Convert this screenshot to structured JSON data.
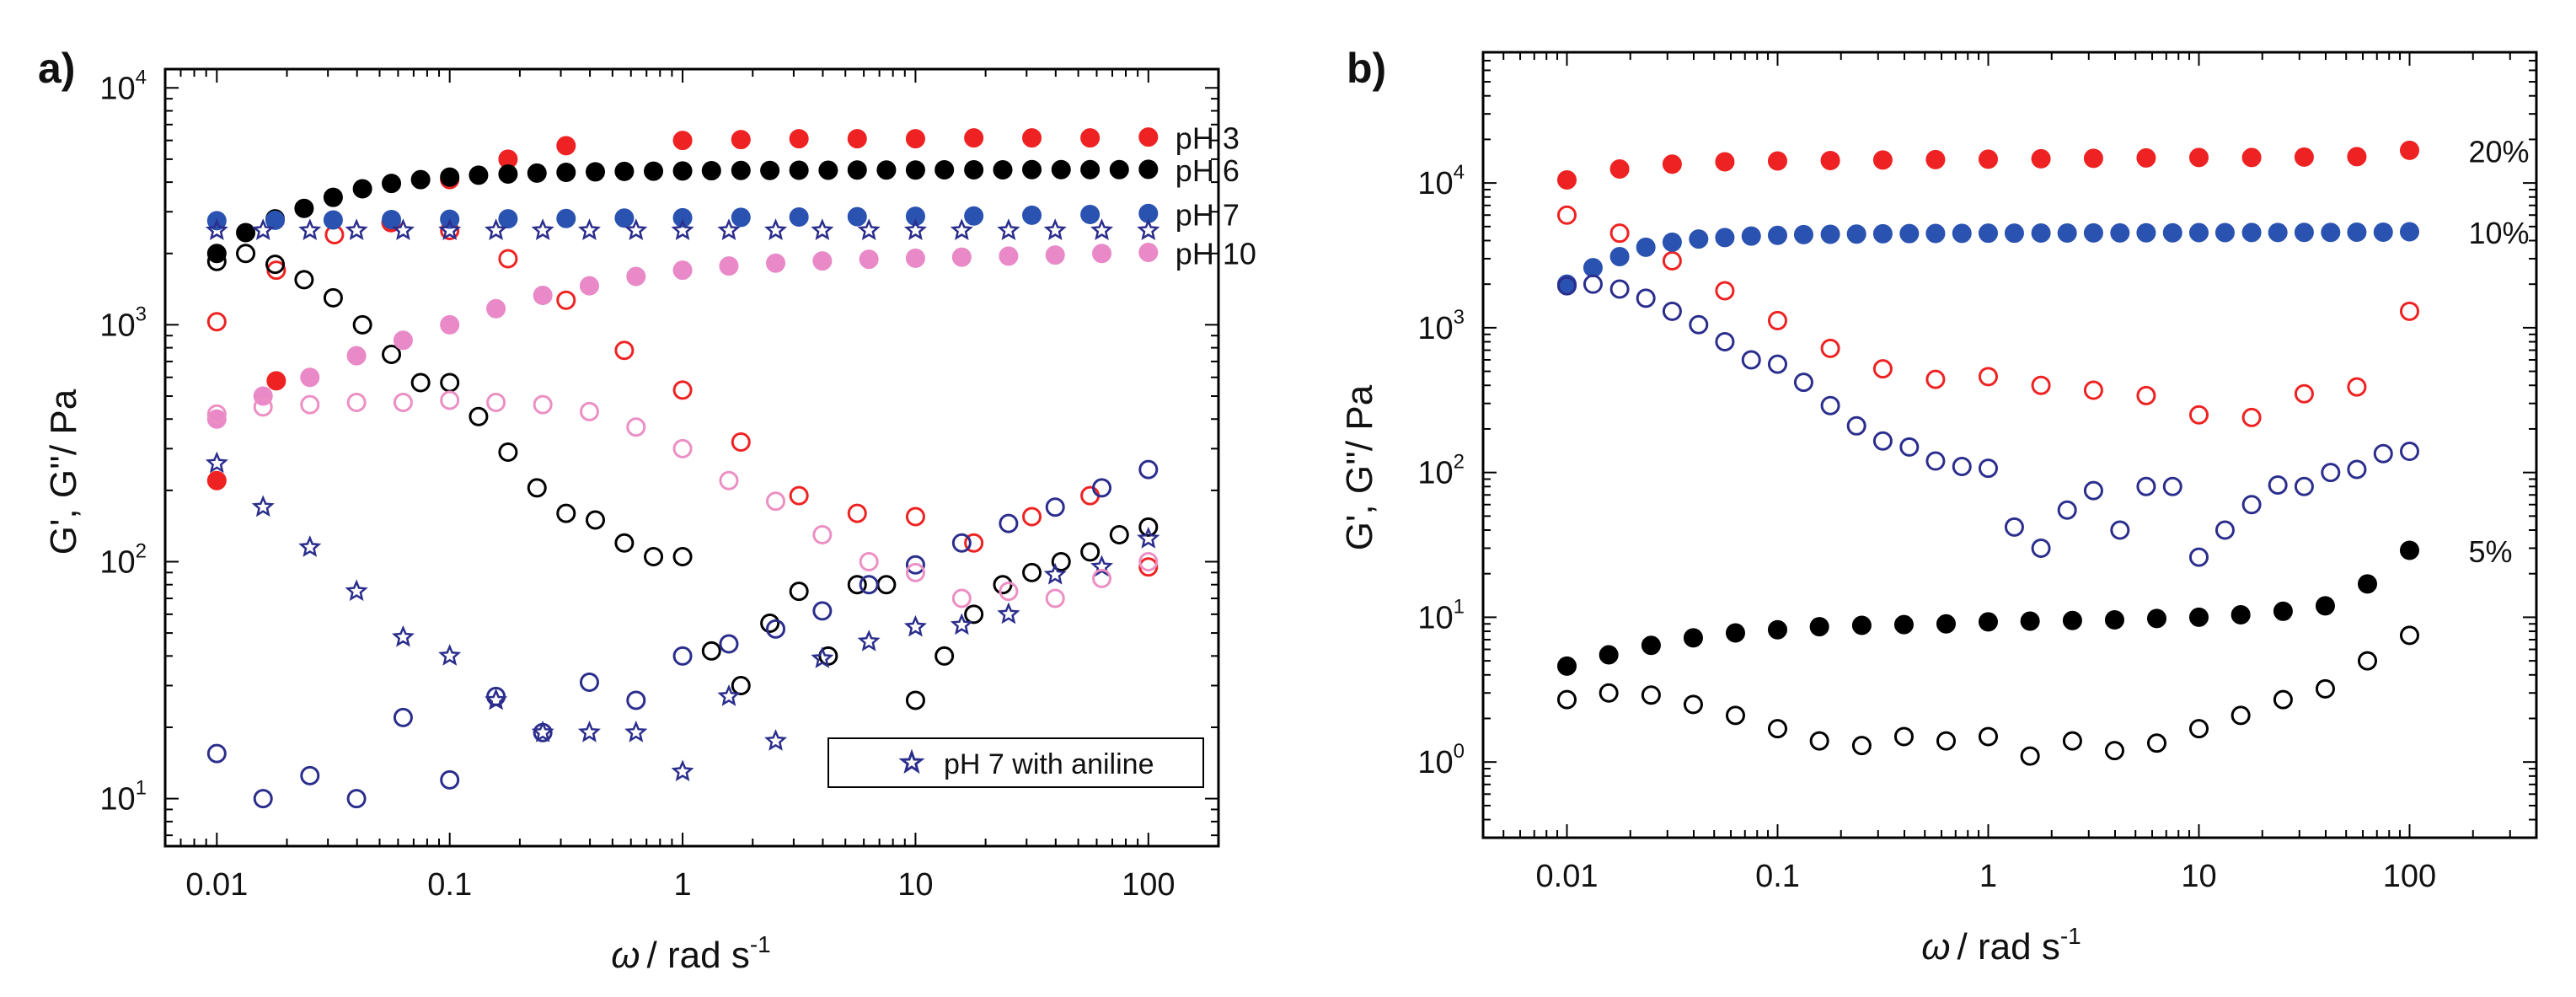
{
  "colors": {
    "red": "#ee2222",
    "black": "#000000",
    "blue": "#2a52b0",
    "navy": "#2b2e8c",
    "pink": "#e989c8",
    "light_pink": "#ec8fc4"
  },
  "chart_data": [
    {
      "type": "scatter",
      "panel_label": "a)",
      "xlabel_symbol": "ω",
      "xlabel_unit": "/ rad s",
      "xlabel_exp": "-1",
      "ylabel": "G', G''/ Pa",
      "xscale": "log",
      "yscale": "log",
      "xlim": [
        0.006,
        200
      ],
      "ylim": [
        6.3,
        12000
      ],
      "x_ticks": [
        0.01,
        0.1,
        1,
        10,
        100
      ],
      "x_tick_labels": [
        "0.01",
        "0.1",
        "1",
        "10",
        "100"
      ],
      "y_ticks": [
        10,
        100,
        1000,
        10000
      ],
      "y_tick_base": "10",
      "y_tick_exps": [
        "1",
        "2",
        "3",
        "4"
      ],
      "legend": {
        "label": "pH 7 with aniline",
        "position": "bottom-right"
      },
      "series": [
        {
          "name": "pH 3 G'",
          "label": "pH 3",
          "marker": "filled-circle",
          "color": "#ee2222",
          "x": [
            0.01,
            0.018,
            0.056,
            0.1,
            0.178,
            0.316,
            1,
            1.78,
            3.16,
            5.62,
            10,
            17.8,
            31.6,
            56.2,
            100
          ],
          "y": [
            220,
            580,
            2700,
            4100,
            5000,
            5700,
            6000,
            6050,
            6100,
            6100,
            6100,
            6150,
            6150,
            6150,
            6200
          ]
        },
        {
          "name": "pH 3 G''",
          "marker": "open-circle",
          "color": "#ee2222",
          "x": [
            0.01,
            0.018,
            0.032,
            0.056,
            0.1,
            0.178,
            0.316,
            0.562,
            1,
            1.78,
            3.16,
            5.62,
            10,
            17.8,
            31.6,
            56.2,
            100
          ],
          "y": [
            1030,
            1700,
            2400,
            2700,
            2500,
            1900,
            1270,
            780,
            530,
            320,
            190,
            160,
            155,
            120,
            155,
            190,
            95
          ]
        },
        {
          "name": "pH 6 G'",
          "label": "pH 6",
          "marker": "filled-circle",
          "color": "#000000",
          "x": [
            0.01,
            0.0133,
            0.0178,
            0.0237,
            0.0316,
            0.0422,
            0.0562,
            0.075,
            0.1,
            0.133,
            0.178,
            0.237,
            0.316,
            0.422,
            0.562,
            0.75,
            1,
            1.33,
            1.78,
            2.37,
            3.16,
            4.22,
            5.62,
            7.5,
            10,
            13.3,
            17.8,
            23.7,
            31.6,
            42.2,
            56.2,
            75,
            100
          ],
          "y": [
            2000,
            2450,
            2800,
            3100,
            3450,
            3750,
            3950,
            4100,
            4200,
            4280,
            4330,
            4370,
            4400,
            4420,
            4440,
            4450,
            4460,
            4470,
            4480,
            4480,
            4490,
            4490,
            4500,
            4500,
            4500,
            4510,
            4510,
            4510,
            4520,
            4520,
            4520,
            4520,
            4530
          ]
        },
        {
          "name": "pH 6 G''",
          "marker": "open-circle",
          "color": "#000000",
          "x": [
            0.01,
            0.0133,
            0.0178,
            0.0237,
            0.0316,
            0.0422,
            0.0562,
            0.075,
            0.1,
            0.133,
            0.178,
            0.237,
            0.316,
            0.422,
            0.562,
            0.75,
            1,
            1.33,
            1.78,
            2.37,
            3.16,
            4.22,
            5.62,
            7.5,
            10,
            13.3,
            17.8,
            23.7,
            31.6,
            42.2,
            56.2,
            75,
            100
          ],
          "y": [
            1850,
            2000,
            1800,
            1550,
            1300,
            1000,
            750,
            570,
            570,
            410,
            290,
            205,
            160,
            150,
            120,
            105,
            105,
            42,
            30,
            55,
            75,
            40,
            80,
            80,
            26,
            40,
            60,
            80,
            90,
            100,
            110,
            130,
            140
          ]
        },
        {
          "name": "pH 7 G'",
          "label": "pH 7",
          "marker": "filled-circle",
          "color": "#2a52b0",
          "x": [
            0.01,
            0.0178,
            0.0316,
            0.0562,
            0.1,
            0.178,
            0.316,
            0.562,
            1,
            1.78,
            3.16,
            5.62,
            10,
            17.8,
            31.6,
            56.2,
            100
          ],
          "y": [
            2750,
            2760,
            2770,
            2780,
            2790,
            2800,
            2810,
            2820,
            2830,
            2840,
            2850,
            2860,
            2870,
            2880,
            2900,
            2920,
            2950
          ]
        },
        {
          "name": "pH 7 G''",
          "marker": "open-circle",
          "color": "#2b2e8c",
          "x": [
            0.01,
            0.0158,
            0.0251,
            0.0398,
            0.0631,
            0.1,
            0.158,
            0.251,
            0.398,
            0.631,
            1,
            1.58,
            2.51,
            3.98,
            6.31,
            10,
            15.8,
            25.1,
            39.8,
            63.1,
            100
          ],
          "y": [
            15.5,
            10,
            12.5,
            10,
            22,
            12,
            27,
            19,
            31,
            26,
            40,
            45,
            52,
            62,
            80,
            97,
            120,
            145,
            170,
            205,
            245
          ]
        },
        {
          "name": "pH 7 with aniline G'",
          "marker": "star",
          "color": "#2b2e8c",
          "x": [
            0.01,
            0.0158,
            0.0251,
            0.0398,
            0.0631,
            0.1,
            0.158,
            0.251,
            0.398,
            0.631,
            1,
            1.58,
            2.51,
            3.98,
            6.31,
            10,
            15.8,
            25.1,
            39.8,
            63.1,
            100
          ],
          "y": [
            2500,
            2500,
            2500,
            2500,
            2500,
            2500,
            2500,
            2500,
            2500,
            2500,
            2500,
            2500,
            2500,
            2500,
            2500,
            2500,
            2500,
            2500,
            2500,
            2500,
            2500
          ]
        },
        {
          "name": "pH 7 with aniline G''",
          "marker": "star",
          "color": "#2b2e8c",
          "x": [
            0.01,
            0.0158,
            0.0251,
            0.0398,
            0.0631,
            0.1,
            0.158,
            0.251,
            0.398,
            0.631,
            1,
            1.58,
            2.51,
            3.98,
            6.31,
            10,
            15.8,
            25.1,
            39.8,
            63.1,
            100
          ],
          "y": [
            260,
            170,
            115,
            75,
            48,
            40,
            26,
            19,
            19,
            19,
            13,
            27,
            17.5,
            39,
            46,
            53,
            54,
            60,
            88,
            95,
            125
          ]
        },
        {
          "name": "pH 10 G'",
          "label": "pH 10",
          "marker": "filled-circle",
          "color": "#e989c8",
          "x": [
            0.01,
            0.0158,
            0.0251,
            0.0398,
            0.0631,
            0.1,
            0.158,
            0.251,
            0.398,
            0.631,
            1,
            1.58,
            2.51,
            3.98,
            6.31,
            10,
            15.8,
            25.1,
            39.8,
            63.1,
            100
          ],
          "y": [
            400,
            500,
            600,
            740,
            860,
            1000,
            1170,
            1330,
            1460,
            1600,
            1700,
            1770,
            1820,
            1860,
            1890,
            1910,
            1930,
            1950,
            1970,
            2000,
            2020
          ]
        },
        {
          "name": "pH 10 G''",
          "marker": "open-circle",
          "color": "#ec8fc4",
          "x": [
            0.01,
            0.0158,
            0.0251,
            0.0398,
            0.0631,
            0.1,
            0.158,
            0.251,
            0.398,
            0.631,
            1,
            1.58,
            2.51,
            3.98,
            6.31,
            10,
            15.8,
            25.1,
            39.8,
            63.1,
            100
          ],
          "y": [
            420,
            450,
            460,
            470,
            470,
            480,
            470,
            460,
            430,
            370,
            300,
            220,
            180,
            130,
            100,
            90,
            70,
            75,
            70,
            85,
            100
          ]
        }
      ]
    },
    {
      "type": "scatter",
      "panel_label": "b)",
      "xlabel_symbol": "ω",
      "xlabel_unit": "/ rad s",
      "xlabel_exp": "-1",
      "ylabel": "G', G''/ Pa",
      "xscale": "log",
      "yscale": "log",
      "xlim": [
        0.004,
        400
      ],
      "ylim": [
        0.3,
        80000
      ],
      "x_ticks": [
        0.01,
        0.1,
        1,
        10,
        100
      ],
      "x_tick_labels": [
        "0.01",
        "0.1",
        "1",
        "10",
        "100"
      ],
      "y_ticks": [
        1,
        10,
        100,
        1000,
        10000
      ],
      "y_tick_base": "10",
      "y_tick_exps": [
        "0",
        "1",
        "2",
        "3",
        "4"
      ],
      "series": [
        {
          "name": "20% G'",
          "label": "20%",
          "marker": "filled-circle",
          "color": "#ee2222",
          "x": [
            0.01,
            0.0178,
            0.0316,
            0.0562,
            0.1,
            0.178,
            0.316,
            0.562,
            1,
            1.78,
            3.16,
            5.62,
            10,
            17.8,
            31.6,
            56.2,
            100
          ],
          "y": [
            10500,
            12500,
            13500,
            14000,
            14200,
            14300,
            14400,
            14500,
            14600,
            14700,
            14800,
            14900,
            15000,
            15000,
            15100,
            15200,
            16800
          ]
        },
        {
          "name": "20% G''",
          "marker": "open-circle",
          "color": "#ee2222",
          "x": [
            0.01,
            0.0178,
            0.0316,
            0.0562,
            0.1,
            0.178,
            0.316,
            0.562,
            1,
            1.78,
            3.16,
            5.62,
            10,
            17.8,
            31.6,
            56.2,
            100
          ],
          "y": [
            6000,
            4500,
            2900,
            1800,
            1120,
            720,
            520,
            440,
            460,
            400,
            370,
            340,
            250,
            240,
            350,
            390,
            1300
          ]
        },
        {
          "name": "10% G'",
          "label": "10%",
          "marker": "filled-circle",
          "color": "#2a52b0",
          "x": [
            0.01,
            0.0133,
            0.0178,
            0.0237,
            0.0316,
            0.0422,
            0.0562,
            0.075,
            0.1,
            0.133,
            0.178,
            0.237,
            0.316,
            0.422,
            0.562,
            0.75,
            1,
            1.33,
            1.78,
            2.37,
            3.16,
            4.22,
            5.62,
            7.5,
            10,
            13.3,
            17.8,
            23.7,
            31.6,
            42.2,
            56.2,
            75,
            100
          ],
          "y": [
            2000,
            2600,
            3100,
            3600,
            3900,
            4100,
            4200,
            4300,
            4350,
            4400,
            4420,
            4440,
            4460,
            4470,
            4480,
            4490,
            4500,
            4500,
            4510,
            4510,
            4520,
            4520,
            4530,
            4530,
            4540,
            4540,
            4550,
            4550,
            4560,
            4560,
            4570,
            4570,
            4600
          ]
        },
        {
          "name": "10% G''",
          "marker": "open-circle",
          "color": "#2b2e8c",
          "x": [
            0.01,
            0.0133,
            0.0178,
            0.0237,
            0.0316,
            0.0422,
            0.0562,
            0.075,
            0.1,
            0.133,
            0.178,
            0.237,
            0.316,
            0.422,
            0.562,
            0.75,
            1,
            1.33,
            1.78,
            2.37,
            3.16,
            4.22,
            5.62,
            7.5,
            10,
            13.3,
            17.8,
            23.7,
            31.6,
            42.2,
            56.2,
            75,
            100
          ],
          "y": [
            1950,
            2000,
            1850,
            1600,
            1300,
            1050,
            800,
            600,
            560,
            420,
            290,
            210,
            165,
            150,
            120,
            110,
            107,
            42,
            30,
            55,
            75,
            40,
            80,
            80,
            26,
            40,
            60,
            82,
            80,
            100,
            105,
            135,
            140
          ]
        },
        {
          "name": "5% G'",
          "label": "5%",
          "marker": "filled-circle",
          "color": "#000000",
          "x": [
            0.01,
            0.0158,
            0.0251,
            0.0398,
            0.0631,
            0.1,
            0.158,
            0.251,
            0.398,
            0.631,
            1,
            1.58,
            2.51,
            3.98,
            6.31,
            10,
            15.8,
            25.1,
            39.8,
            63.1,
            100
          ],
          "y": [
            4.6,
            5.5,
            6.4,
            7.2,
            7.8,
            8.2,
            8.6,
            8.8,
            8.9,
            9,
            9.3,
            9.4,
            9.5,
            9.6,
            9.8,
            10,
            10.4,
            11,
            12,
            17,
            29
          ]
        },
        {
          "name": "5% G''",
          "marker": "open-circle",
          "color": "#000000",
          "x": [
            0.01,
            0.0158,
            0.0251,
            0.0398,
            0.0631,
            0.1,
            0.158,
            0.251,
            0.398,
            0.631,
            1,
            1.58,
            2.51,
            3.98,
            6.31,
            10,
            15.8,
            25.1,
            39.8,
            63.1,
            100
          ],
          "y": [
            2.7,
            3,
            2.9,
            2.5,
            2.1,
            1.7,
            1.4,
            1.3,
            1.5,
            1.4,
            1.5,
            1.1,
            1.4,
            1.2,
            1.35,
            1.7,
            2.1,
            2.7,
            3.2,
            5,
            7.5
          ]
        }
      ]
    }
  ]
}
